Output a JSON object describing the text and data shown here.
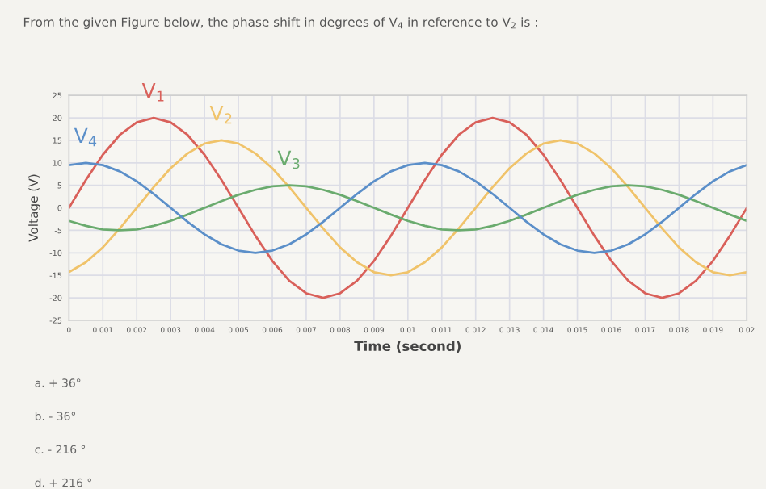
{
  "chart_data": {
    "type": "line",
    "title": "From the given Figure below, the phase shift in degrees of V$_{4}$ in reference to V$_{2}$ is :",
    "xlabel": "Time (second)",
    "ylabel": "Voltage (V)",
    "x": [
      0,
      0.0005,
      0.001,
      0.0015,
      0.002,
      0.0025,
      0.003,
      0.0035,
      0.004,
      0.0045,
      0.005,
      0.0055,
      0.006,
      0.0065,
      0.007,
      0.0075,
      0.008,
      0.0085,
      0.009,
      0.0095,
      0.01,
      0.0105,
      0.011,
      0.0115,
      0.012,
      0.0125,
      0.013,
      0.0135,
      0.014,
      0.0145,
      0.015,
      0.0155,
      0.016,
      0.0165,
      0.017,
      0.0175,
      0.018,
      0.0185,
      0.019,
      0.0195,
      0.02
    ],
    "series": [
      {
        "name": "V$_{1}$",
        "color": "#d9605a",
        "values": [
          0,
          6.2,
          11.8,
          16.2,
          19,
          20,
          19,
          16.2,
          11.8,
          6.2,
          0,
          -6.2,
          -11.8,
          -16.2,
          -19,
          -20,
          -19,
          -16.2,
          -11.8,
          -6.2,
          0,
          6.2,
          11.8,
          16.2,
          19,
          20,
          19,
          16.2,
          11.8,
          6.2,
          0,
          -6.2,
          -11.8,
          -16.2,
          -19,
          -20,
          -19,
          -16.2,
          -11.8,
          -6.2,
          0
        ]
      },
      {
        "name": "V$_{2}$",
        "color": "#f0c36a",
        "values": [
          -14.3,
          -12.1,
          -8.8,
          -4.6,
          0,
          4.6,
          8.8,
          12.1,
          14.3,
          15,
          14.3,
          12.1,
          8.8,
          4.6,
          0,
          -4.6,
          -8.8,
          -12.1,
          -14.3,
          -15,
          -14.3,
          -12.1,
          -8.8,
          -4.6,
          0,
          4.6,
          8.8,
          12.1,
          14.3,
          15,
          14.3,
          12.1,
          8.8,
          4.6,
          0,
          -4.6,
          -8.8,
          -12.1,
          -14.3,
          -15,
          -14.3
        ]
      },
      {
        "name": "V$_{3}$",
        "color": "#6aab6e",
        "values": [
          -2.9,
          -4,
          -4.8,
          -5,
          -4.8,
          -4,
          -2.9,
          -1.5,
          0,
          1.5,
          2.9,
          4,
          4.8,
          5,
          4.8,
          4,
          2.9,
          1.5,
          0,
          -1.5,
          -2.9,
          -4,
          -4.8,
          -5,
          -4.8,
          -4,
          -2.9,
          -1.5,
          0,
          1.5,
          2.9,
          4,
          4.8,
          5,
          4.8,
          4,
          2.9,
          1.5,
          0,
          -1.5,
          -2.9
        ]
      },
      {
        "name": "V$_{4}$",
        "color": "#5b8fc9",
        "values": [
          9.5,
          10,
          9.5,
          8.1,
          5.9,
          3.1,
          0,
          -3.1,
          -5.9,
          -8.1,
          -9.5,
          -10,
          -9.5,
          -8.1,
          -5.9,
          -3.1,
          0,
          3.1,
          5.9,
          8.1,
          9.5,
          10,
          9.5,
          8.1,
          5.9,
          3.1,
          0,
          -3.1,
          -5.9,
          -8.1,
          -9.5,
          -10,
          -9.5,
          -8.1,
          -5.9,
          -3.1,
          0,
          3.1,
          5.9,
          8.1,
          9.5
        ]
      }
    ],
    "xlim": [
      0,
      0.02
    ],
    "xticks": [
      0,
      0.001,
      0.002,
      0.003,
      0.004,
      0.005,
      0.006,
      0.007,
      0.008,
      0.009,
      0.01,
      0.011,
      0.012,
      0.013,
      0.014,
      0.015,
      0.016,
      0.017,
      0.018,
      0.019,
      0.02
    ],
    "ylim": [
      -25,
      25
    ],
    "yticks": [
      -25,
      -20,
      -15,
      -10,
      -5,
      0,
      5,
      10,
      15,
      20,
      25
    ],
    "grid": true,
    "marker": "none",
    "line_style": "solid",
    "annotations": [
      "a. + 36°",
      "b. - 36°",
      "c. - 216 °",
      "d. + 216 °"
    ]
  }
}
